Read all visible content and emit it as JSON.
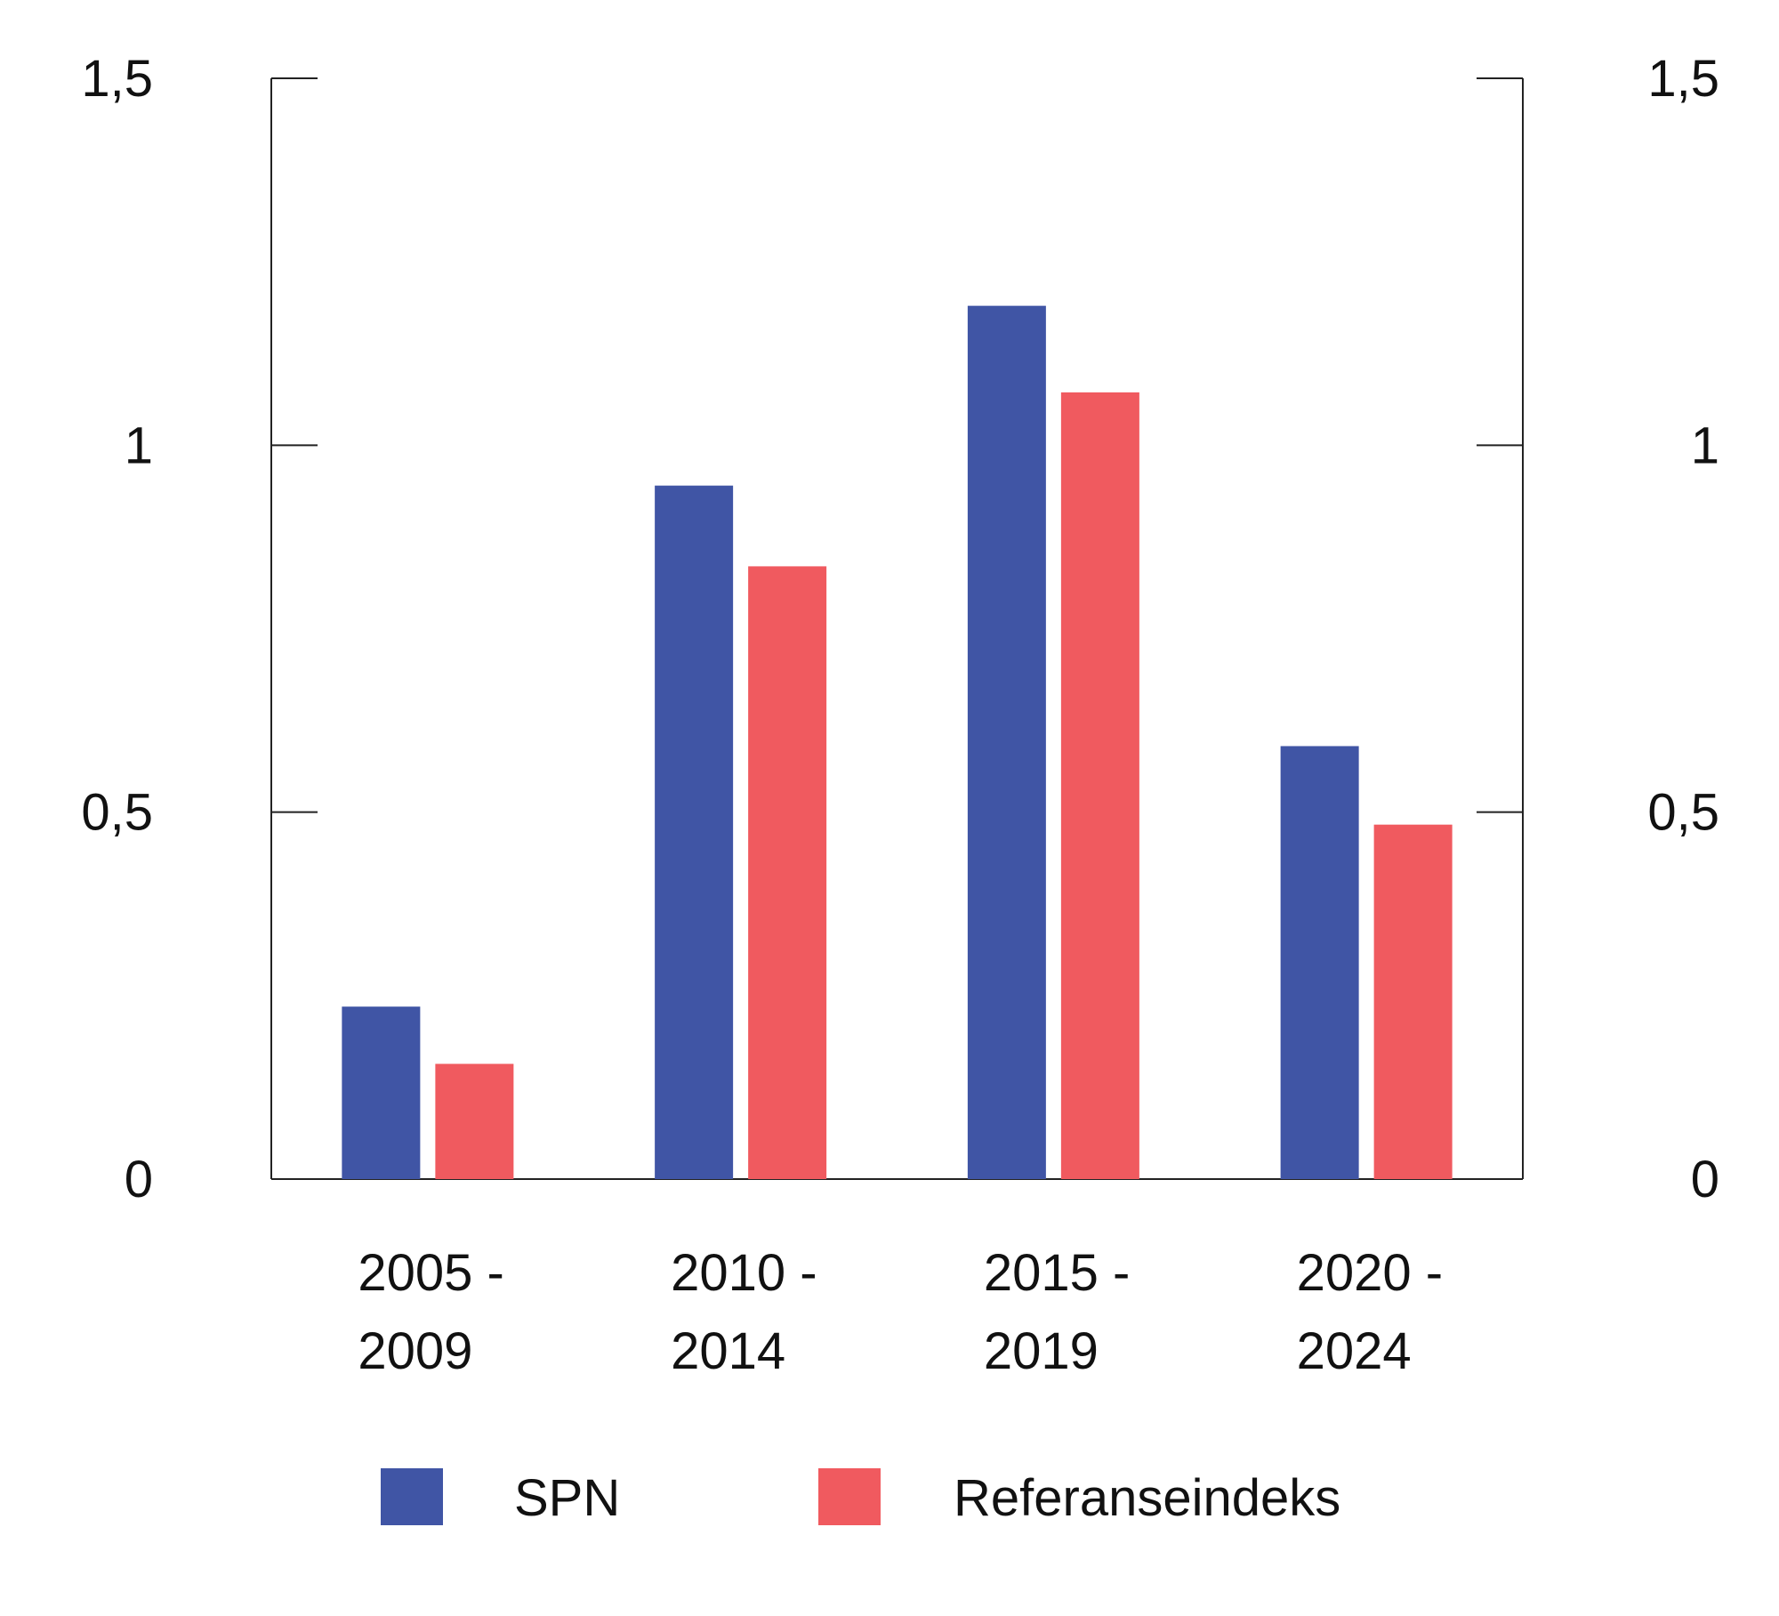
{
  "chart_data": {
    "type": "bar",
    "title": "",
    "xlabel": "",
    "ylabel": "",
    "categories": [
      [
        "2005 -",
        "2009"
      ],
      [
        "2010 -",
        "2014"
      ],
      [
        "2015 -",
        "2019"
      ],
      [
        "2020 -",
        "2024"
      ]
    ],
    "series": [
      {
        "name": "SPN",
        "values": [
          0.235,
          0.945,
          1.19,
          0.59
        ],
        "color": "#4055a5"
      },
      {
        "name": "Referanseindeks",
        "values": [
          0.157,
          0.835,
          1.072,
          0.483
        ],
        "color": "#f05a5f"
      }
    ],
    "ylim": [
      0,
      1.5
    ],
    "yticks": [
      0,
      0.5,
      1,
      1.5
    ],
    "ytick_labels": [
      "0",
      "0,5",
      "1",
      "1,5"
    ],
    "right_axis_ticks": true,
    "grid": false,
    "legend_position": "bottom"
  }
}
